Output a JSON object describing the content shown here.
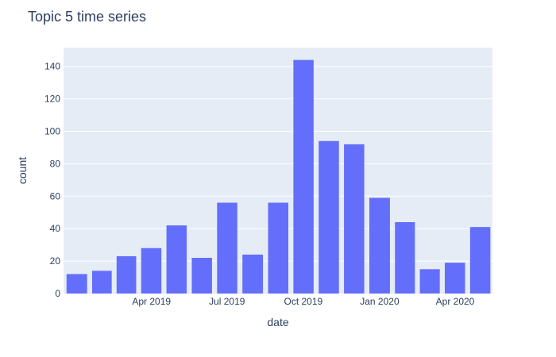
{
  "chart_data": {
    "type": "bar",
    "title": "Topic 5 time series",
    "xlabel": "date",
    "ylabel": "count",
    "x": [
      "2019-01-01",
      "2019-02-01",
      "2019-03-01",
      "2019-04-01",
      "2019-05-01",
      "2019-06-01",
      "2019-07-01",
      "2019-08-01",
      "2019-09-01",
      "2019-10-01",
      "2019-11-01",
      "2019-12-01",
      "2020-01-01",
      "2020-02-01",
      "2020-03-01",
      "2020-04-01",
      "2020-05-01"
    ],
    "values": [
      12,
      14,
      23,
      28,
      42,
      22,
      56,
      24,
      56,
      144,
      94,
      92,
      59,
      44,
      15,
      19,
      41
    ],
    "x_ticks": [
      "Apr 2019",
      "Jul 2019",
      "Oct 2019",
      "Jan 2020",
      "Apr 2020"
    ],
    "y_ticks": [
      0,
      20,
      40,
      60,
      80,
      100,
      120,
      140
    ],
    "ylim": [
      0,
      151.6
    ],
    "grid": true,
    "colors": {
      "bar": "#636efa",
      "plot_bg": "#e5ecf6",
      "grid": "#ffffff",
      "text": "#2a3f5f"
    }
  }
}
